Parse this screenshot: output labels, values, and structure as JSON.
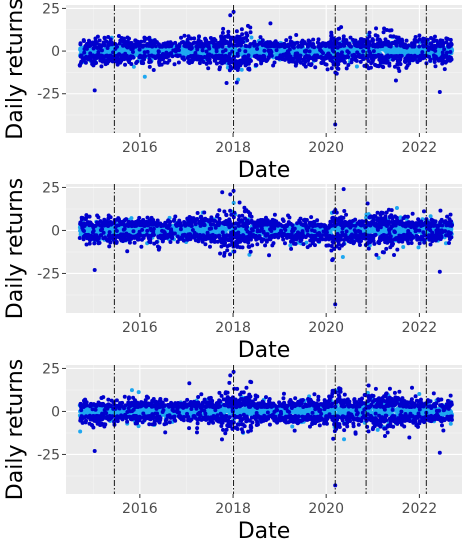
{
  "colors": {
    "panel_background": "#ebebeb",
    "grid_major": "#ffffff",
    "grid_minor": "#f5f5f5",
    "high_volatility": "#0000cd",
    "low_volatility": "#1ea7f0",
    "vline": "#000000",
    "tick_text": "#4d4d4d"
  },
  "chart_data": [
    {
      "type": "scatter",
      "title": "",
      "xlabel": "Date",
      "ylabel": "Daily returns",
      "x_range": [
        "2014-06-01",
        "2022-12-01"
      ],
      "ylim": [
        -48,
        27
      ],
      "x_ticks": [
        "2016",
        "2018",
        "2020",
        "2022"
      ],
      "y_ticks": [
        "25",
        "0",
        "-25"
      ],
      "grid": true,
      "legend": "none",
      "vlines": [
        "2015-06-15",
        "2018-01-05",
        "2020-03-12",
        "2020-11-09",
        "2022-02-24"
      ],
      "notable_points": [
        {
          "x": "2020-03-12",
          "y": -43
        },
        {
          "x": "2018-01-05",
          "y": 23
        },
        {
          "x": "2017-12-10",
          "y": 21
        },
        {
          "x": "2015-01-12",
          "y": -23
        },
        {
          "x": "2022-06-10",
          "y": -24
        }
      ],
      "series": [
        {
          "role": "high_volatility",
          "color": "#0000cd",
          "approx_points": 900
        },
        {
          "role": "low_volatility",
          "color": "#1ea7f0",
          "approx_points": 2100
        }
      ]
    },
    {
      "type": "scatter",
      "title": "",
      "xlabel": "Date",
      "ylabel": "Daily returns",
      "x_range": [
        "2014-06-01",
        "2022-12-01"
      ],
      "ylim": [
        -48,
        27
      ],
      "x_ticks": [
        "2016",
        "2018",
        "2020",
        "2022"
      ],
      "y_ticks": [
        "25",
        "0",
        "-25"
      ],
      "grid": true,
      "legend": "none",
      "vlines": [
        "2015-06-15",
        "2018-01-05",
        "2020-03-12",
        "2020-11-09",
        "2022-02-24"
      ],
      "notable_points": [
        {
          "x": "2020-03-12",
          "y": -43
        },
        {
          "x": "2018-01-05",
          "y": 23
        },
        {
          "x": "2017-12-10",
          "y": 21
        },
        {
          "x": "2015-01-12",
          "y": -23
        },
        {
          "x": "2022-06-10",
          "y": -24
        }
      ],
      "series": [
        {
          "role": "high_volatility",
          "color": "#0000cd",
          "approx_points": 1300
        },
        {
          "role": "low_volatility",
          "color": "#1ea7f0",
          "approx_points": 1700
        }
      ]
    },
    {
      "type": "scatter",
      "title": "",
      "xlabel": "Date",
      "ylabel": "Daily returns",
      "x_range": [
        "2014-06-01",
        "2022-12-01"
      ],
      "ylim": [
        -48,
        27
      ],
      "x_ticks": [
        "2016",
        "2018",
        "2020",
        "2022"
      ],
      "y_ticks": [
        "25",
        "0",
        "-25"
      ],
      "grid": true,
      "legend": "none",
      "vlines": [
        "2015-06-15",
        "2018-01-05",
        "2020-03-12",
        "2020-11-09",
        "2022-02-24"
      ],
      "notable_points": [
        {
          "x": "2020-03-12",
          "y": -43
        },
        {
          "x": "2018-01-05",
          "y": 23
        },
        {
          "x": "2017-12-10",
          "y": 21
        },
        {
          "x": "2015-01-12",
          "y": -23
        },
        {
          "x": "2022-06-10",
          "y": -24
        }
      ],
      "series": [
        {
          "role": "high_volatility",
          "color": "#0000cd",
          "approx_points": 1000
        },
        {
          "role": "low_volatility",
          "color": "#1ea7f0",
          "approx_points": 2000
        }
      ]
    }
  ]
}
